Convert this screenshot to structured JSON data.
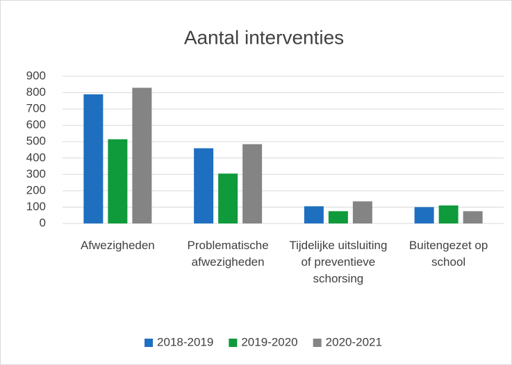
{
  "chart_data": {
    "type": "bar",
    "title": "Aantal interventies",
    "categories": [
      "Afwezigheden",
      "Problematische afwezigheden",
      "Tijdelijke uitsluiting of preventieve schorsing",
      "Buitengezet op school"
    ],
    "series": [
      {
        "name": "2018-2019",
        "color": "#1f6fc0",
        "values": [
          790,
          460,
          105,
          100
        ]
      },
      {
        "name": "2019-2020",
        "color": "#0f9a3c",
        "values": [
          515,
          305,
          75,
          110
        ]
      },
      {
        "name": "2020-2021",
        "color": "#848484",
        "values": [
          830,
          485,
          135,
          75
        ]
      }
    ],
    "ylim": [
      0,
      900
    ],
    "yticks": [
      0,
      100,
      200,
      300,
      400,
      500,
      600,
      700,
      800,
      900
    ],
    "grid": true,
    "legend": "bottom"
  }
}
